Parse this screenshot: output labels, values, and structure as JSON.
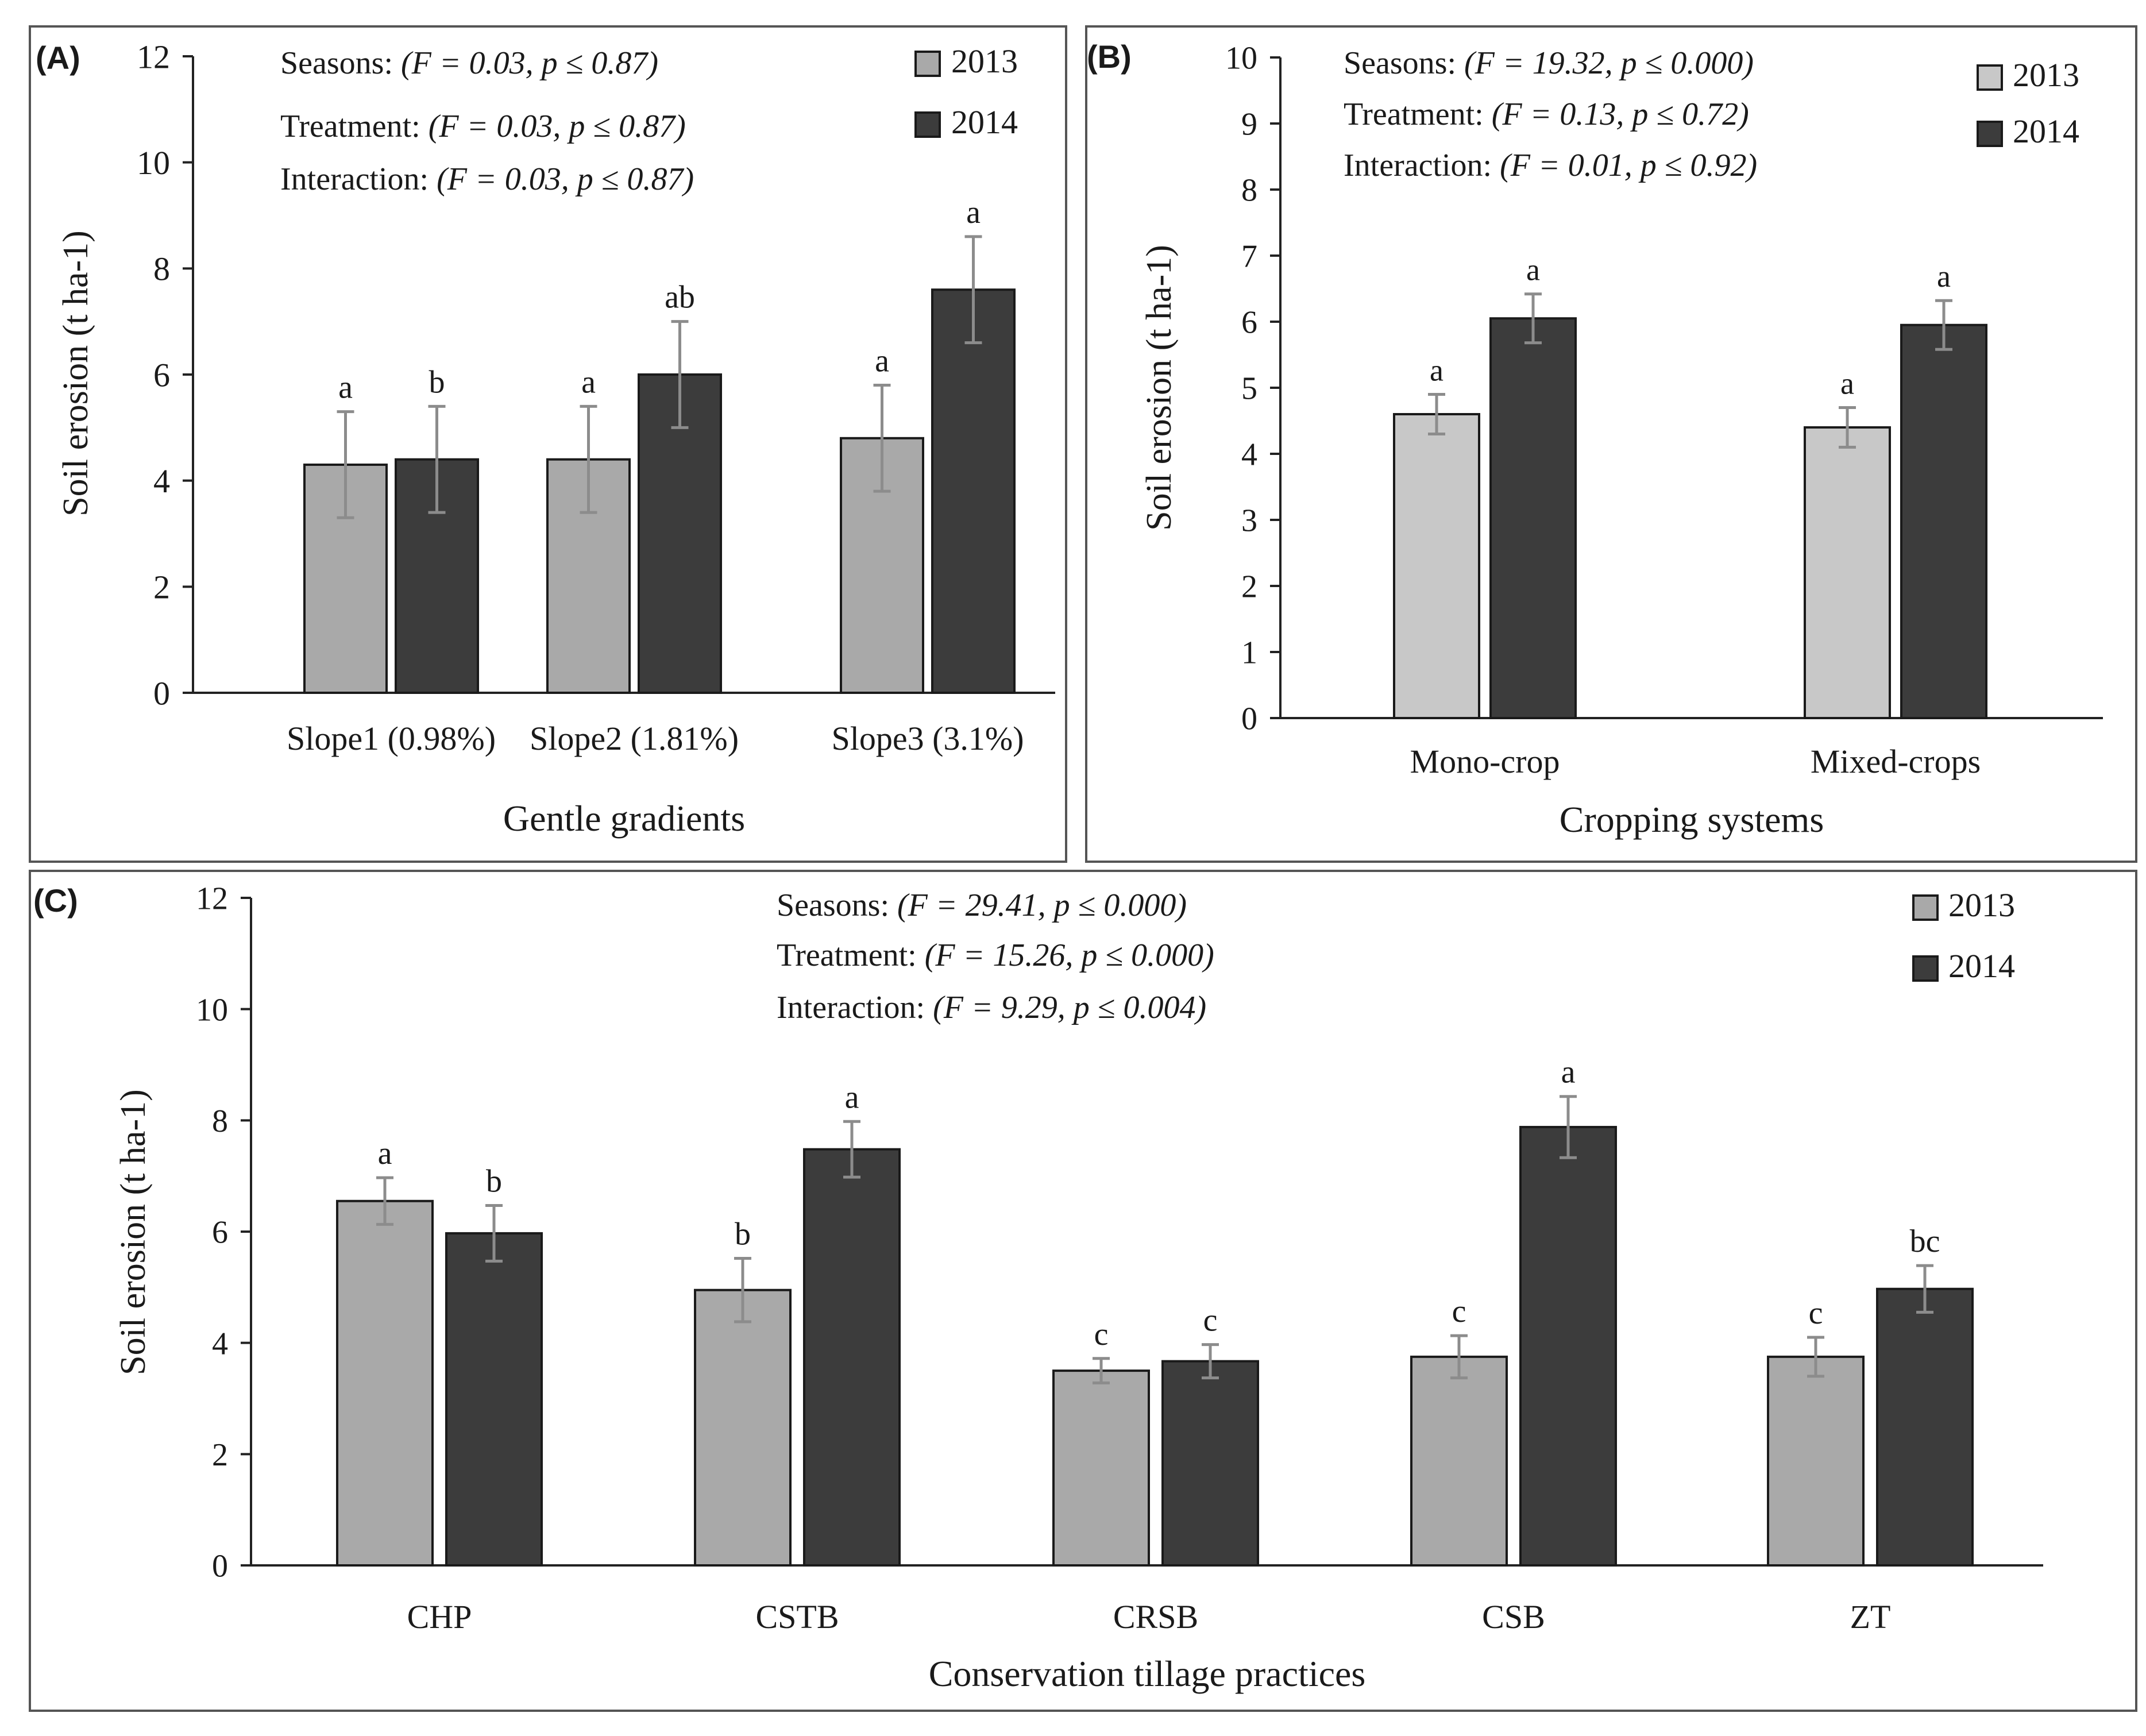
{
  "colors": {
    "series_2013": "#a9a9a9",
    "series_2013_B": "#c8c8c8",
    "series_2014": "#3c3c3c",
    "error_bar": "#8c8c8c",
    "axis": "#222222",
    "panel_border": "#555555"
  },
  "chart_data": [
    {
      "panel_label": "(A)",
      "type": "bar",
      "title": "",
      "xlabel": "Gentle gradients",
      "ylabel": "Soil erosion (t ha-1)",
      "ylim": [
        0,
        12
      ],
      "yticks": [
        "0",
        "2",
        "4",
        "6",
        "8",
        "10",
        "12"
      ],
      "grid": false,
      "legend_position": "top-right",
      "categories": [
        "Slope1 (0.98%)",
        "Slope2 (1.81%)",
        "Slope3 (3.1%)"
      ],
      "series": [
        {
          "name": "2013",
          "values": [
            4.3,
            4.4,
            4.8
          ],
          "errors": [
            1.0,
            1.0,
            1.0
          ],
          "letters": [
            "a",
            "a",
            "a"
          ]
        },
        {
          "name": "2014",
          "values": [
            4.4,
            6.0,
            7.6
          ],
          "errors": [
            1.0,
            1.0,
            1.0
          ],
          "letters": [
            "b",
            "ab",
            "a"
          ]
        }
      ],
      "stats": [
        {
          "label": "Seasons:",
          "value": "(F = 0.03, p ≤ 0.87)"
        },
        {
          "label": "Treatment:",
          "value": "(F = 0.03, p ≤ 0.87)"
        },
        {
          "label": "Interaction:",
          "value": "(F = 0.03, p ≤ 0.87)"
        }
      ]
    },
    {
      "panel_label": "(B)",
      "type": "bar",
      "title": "",
      "xlabel": "Cropping systems",
      "ylabel": "Soil erosion (t ha-1)",
      "ylim": [
        0,
        10
      ],
      "yticks": [
        "0",
        "1",
        "2",
        "3",
        "4",
        "5",
        "6",
        "7",
        "8",
        "9",
        "10"
      ],
      "grid": false,
      "legend_position": "top-right",
      "categories": [
        "Mono-crop",
        "Mixed-crops"
      ],
      "series": [
        {
          "name": "2013",
          "values": [
            4.6,
            4.4
          ],
          "errors": [
            0.3,
            0.3
          ],
          "letters": [
            "a",
            "a"
          ]
        },
        {
          "name": "2014",
          "values": [
            6.05,
            5.95
          ],
          "errors": [
            0.37,
            0.37
          ],
          "letters": [
            "a",
            "a"
          ]
        }
      ],
      "stats": [
        {
          "label": "Seasons:",
          "value": "(F = 19.32, p ≤ 0.000)"
        },
        {
          "label": "Treatment:",
          "value": "(F = 0.13, p ≤ 0.72)"
        },
        {
          "label": "Interaction:",
          "value": "(F = 0.01, p ≤ 0.92)"
        }
      ]
    },
    {
      "panel_label": "(C)",
      "type": "bar",
      "title": "",
      "xlabel": "Conservation tillage practices",
      "ylabel": "Soil erosion (t ha-1)",
      "ylim": [
        0,
        12
      ],
      "yticks": [
        "0",
        "2",
        "4",
        "6",
        "8",
        "10",
        "12"
      ],
      "grid": false,
      "legend_position": "top-right",
      "categories": [
        "CHP",
        "CSTB",
        "CRSB",
        "CSB",
        "ZT"
      ],
      "series": [
        {
          "name": "2013",
          "values": [
            6.55,
            4.95,
            3.5,
            3.75,
            3.75
          ],
          "errors": [
            0.42,
            0.57,
            0.22,
            0.38,
            0.35
          ],
          "letters": [
            "a",
            "b",
            "c",
            "c",
            "c"
          ]
        },
        {
          "name": "2014",
          "values": [
            5.97,
            7.48,
            3.67,
            7.88,
            4.97
          ],
          "errors": [
            0.5,
            0.5,
            0.3,
            0.55,
            0.42
          ],
          "letters": [
            "b",
            "a",
            "c",
            "a",
            "bc"
          ]
        }
      ],
      "stats": [
        {
          "label": "Seasons:",
          "value": "(F = 29.41, p ≤ 0.000)"
        },
        {
          "label": "Treatment:",
          "value": "(F = 15.26, p  ≤ 0.000)"
        },
        {
          "label": "Interaction:",
          "value": "(F = 9.29, p ≤ 0.004)"
        }
      ]
    }
  ]
}
